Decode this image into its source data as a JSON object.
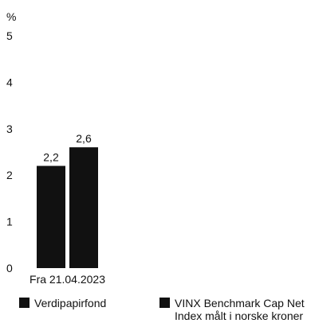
{
  "chart_data": {
    "type": "bar",
    "title": "",
    "ylabel": "%",
    "xlabel": "",
    "ylim": [
      0,
      5
    ],
    "yticks": [
      0,
      1,
      2,
      3,
      4,
      5
    ],
    "categories": [
      "Fra 21.04.2023"
    ],
    "series": [
      {
        "name": "Verdipapirfond",
        "values": [
          2.2
        ],
        "value_labels": [
          "2,2"
        ],
        "color": "#111111"
      },
      {
        "name": "VINX Benchmark Cap Net Index målt i norske kroner",
        "values": [
          2.6
        ],
        "value_labels": [
          "2,6"
        ],
        "color": "#111111"
      }
    ],
    "legend": {
      "placement": "bottom",
      "entries": [
        {
          "lines": [
            "Verdipapirfond"
          ]
        },
        {
          "lines": [
            "VINX Benchmark Cap Net",
            "Index målt i norske kroner"
          ]
        }
      ]
    },
    "grid": false
  }
}
